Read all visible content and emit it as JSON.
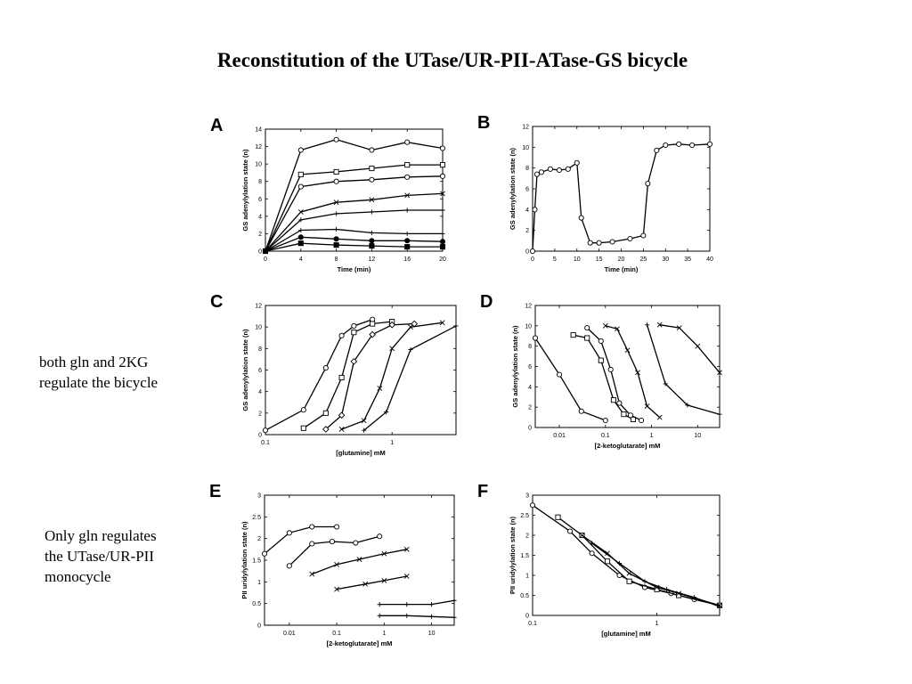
{
  "title": "Reconstitution of the UTase/UR-PII-ATase-GS bicycle",
  "notes": {
    "bicycle": [
      "both gln and 2KG",
      "regulate the bicycle"
    ],
    "monocycle": [
      "Only gln regulates",
      "the UTase/UR-PII",
      "monocycle"
    ]
  },
  "chart_data": [
    {
      "panel": "A",
      "type": "line",
      "xscale": "linear",
      "xlabel": "Time (min)",
      "ylabel": "GS adenylylation state (n)",
      "xlim": [
        0,
        20
      ],
      "ylim": [
        0,
        14
      ],
      "xticks": [
        0,
        4,
        8,
        12,
        16,
        20
      ],
      "yticks": [
        0,
        2,
        4,
        6,
        8,
        10,
        12,
        14
      ],
      "series": [
        {
          "marker": "circle",
          "x": [
            0,
            4,
            8,
            12,
            16,
            20
          ],
          "y": [
            0,
            11.6,
            12.8,
            11.6,
            12.5,
            11.8
          ]
        },
        {
          "marker": "square",
          "x": [
            0,
            4,
            8,
            12,
            16,
            20
          ],
          "y": [
            0,
            8.8,
            9.1,
            9.5,
            9.9,
            9.9
          ]
        },
        {
          "marker": "circle",
          "x": [
            0,
            4,
            8,
            12,
            16,
            20
          ],
          "y": [
            0,
            7.4,
            8.0,
            8.2,
            8.5,
            8.6
          ]
        },
        {
          "marker": "x",
          "x": [
            0,
            4,
            8,
            12,
            16,
            20
          ],
          "y": [
            0,
            4.5,
            5.6,
            5.9,
            6.4,
            6.6
          ]
        },
        {
          "marker": "plus",
          "x": [
            0,
            4,
            8,
            12,
            16,
            20
          ],
          "y": [
            0,
            3.6,
            4.3,
            4.5,
            4.7,
            4.7
          ]
        },
        {
          "marker": "plus",
          "x": [
            0,
            4,
            8,
            12,
            16,
            20
          ],
          "y": [
            0,
            2.4,
            2.5,
            2.1,
            2.0,
            2.0
          ]
        },
        {
          "marker": "filled-circle",
          "x": [
            0,
            4,
            8,
            12,
            16,
            20
          ],
          "y": [
            0,
            1.6,
            1.4,
            1.2,
            1.2,
            1.1
          ]
        },
        {
          "marker": "filled-square",
          "x": [
            0,
            4,
            8,
            12,
            16,
            20
          ],
          "y": [
            0,
            0.9,
            0.7,
            0.6,
            0.5,
            0.5
          ]
        }
      ]
    },
    {
      "panel": "B",
      "type": "line",
      "xscale": "linear",
      "xlabel": "Time (min)",
      "ylabel": "GS adenylylation state (n)",
      "xlim": [
        0,
        40
      ],
      "ylim": [
        0,
        12
      ],
      "xticks": [
        0,
        5,
        10,
        15,
        20,
        25,
        30,
        35,
        40
      ],
      "yticks": [
        0,
        2,
        4,
        6,
        8,
        10,
        12
      ],
      "series": [
        {
          "marker": "circle",
          "x": [
            0,
            0.5,
            1,
            2,
            4,
            6,
            8,
            10,
            11,
            13,
            15,
            18,
            22,
            25,
            26,
            28,
            30,
            33,
            36,
            40
          ],
          "y": [
            0,
            4.0,
            7.4,
            7.6,
            7.9,
            7.8,
            7.9,
            8.5,
            3.2,
            0.8,
            0.8,
            0.9,
            1.2,
            1.5,
            6.5,
            9.7,
            10.2,
            10.3,
            10.2,
            10.3
          ]
        }
      ]
    },
    {
      "panel": "C",
      "type": "line",
      "xscale": "log",
      "xlabel": "[glutamine] mM",
      "ylabel": "GS adenylylation state (n)",
      "xlim": [
        0.1,
        3.2
      ],
      "ylim": [
        0,
        12
      ],
      "xticks": [
        0.1,
        1
      ],
      "yticks": [
        0,
        2,
        4,
        6,
        8,
        10,
        12
      ],
      "series": [
        {
          "marker": "circle",
          "x": [
            0.1,
            0.2,
            0.3,
            0.4,
            0.5,
            0.7
          ],
          "y": [
            0.4,
            2.3,
            6.2,
            9.2,
            10.1,
            10.7
          ]
        },
        {
          "marker": "square",
          "x": [
            0.2,
            0.3,
            0.4,
            0.5,
            0.7,
            1.0
          ],
          "y": [
            0.6,
            2.0,
            5.3,
            9.5,
            10.3,
            10.5
          ]
        },
        {
          "marker": "diamond",
          "x": [
            0.3,
            0.4,
            0.5,
            0.7,
            1.0,
            1.5
          ],
          "y": [
            0.5,
            1.8,
            6.8,
            9.3,
            10.2,
            10.3
          ]
        },
        {
          "marker": "x",
          "x": [
            0.4,
            0.6,
            0.8,
            1.0,
            1.4,
            2.5
          ],
          "y": [
            0.5,
            1.3,
            4.3,
            8.0,
            10.0,
            10.4
          ]
        },
        {
          "marker": "plus",
          "x": [
            0.6,
            0.9,
            1.4,
            3.2
          ],
          "y": [
            0.4,
            2.1,
            7.9,
            10.1
          ]
        }
      ]
    },
    {
      "panel": "D",
      "type": "line",
      "xscale": "log",
      "xlabel": "[2-ketoglutarate] mM",
      "ylabel": "GS adenylylation state (n)",
      "xlim": [
        0.003,
        30
      ],
      "ylim": [
        0,
        12
      ],
      "xticks": [
        0.01,
        0.1,
        1,
        10
      ],
      "yticks": [
        0,
        2,
        4,
        6,
        8,
        10,
        12
      ],
      "series": [
        {
          "marker": "circle",
          "x": [
            0.003,
            0.01,
            0.03,
            0.1
          ],
          "y": [
            8.8,
            5.2,
            1.6,
            0.7
          ]
        },
        {
          "marker": "square",
          "x": [
            0.02,
            0.04,
            0.08,
            0.15,
            0.25,
            0.4
          ],
          "y": [
            9.1,
            8.8,
            6.6,
            2.7,
            1.3,
            0.8
          ]
        },
        {
          "marker": "circle",
          "x": [
            0.04,
            0.08,
            0.13,
            0.2,
            0.35,
            0.6
          ],
          "y": [
            9.8,
            8.5,
            5.7,
            2.4,
            1.2,
            0.7
          ]
        },
        {
          "marker": "x",
          "x": [
            0.1,
            0.18,
            0.3,
            0.5,
            0.8,
            1.5
          ],
          "y": [
            10.0,
            9.7,
            7.6,
            5.4,
            2.1,
            1.0
          ]
        },
        {
          "marker": "plus",
          "x": [
            0.8,
            2,
            6,
            30
          ],
          "y": [
            10.1,
            4.3,
            2.2,
            1.3
          ]
        },
        {
          "marker": "x",
          "x": [
            1.5,
            4,
            10,
            30
          ],
          "y": [
            10.1,
            9.8,
            8.0,
            5.4
          ]
        }
      ]
    },
    {
      "panel": "E",
      "type": "line",
      "xscale": "log",
      "xlabel": "[2-ketoglutarate] mM",
      "ylabel": "PII uridylylation state (n)",
      "xlim": [
        0.003,
        30
      ],
      "ylim": [
        0,
        3
      ],
      "xticks": [
        0.01,
        0.1,
        1,
        10
      ],
      "yticks": [
        0,
        0.5,
        1,
        1.5,
        2,
        2.5,
        3
      ],
      "series": [
        {
          "marker": "circle",
          "x": [
            0.003,
            0.01,
            0.03,
            0.1
          ],
          "y": [
            1.65,
            2.13,
            2.27,
            2.27
          ]
        },
        {
          "marker": "circle",
          "x": [
            0.01,
            0.03,
            0.08,
            0.25,
            0.8
          ],
          "y": [
            1.37,
            1.88,
            1.93,
            1.9,
            2.05
          ]
        },
        {
          "marker": "x",
          "x": [
            0.03,
            0.1,
            0.3,
            1,
            3
          ],
          "y": [
            1.18,
            1.4,
            1.52,
            1.65,
            1.75
          ]
        },
        {
          "marker": "x",
          "x": [
            0.1,
            0.4,
            1,
            3
          ],
          "y": [
            0.83,
            0.95,
            1.03,
            1.13
          ]
        },
        {
          "marker": "plus",
          "x": [
            0.8,
            3,
            10,
            30
          ],
          "y": [
            0.48,
            0.48,
            0.48,
            0.57
          ]
        },
        {
          "marker": "plus",
          "x": [
            0.8,
            3,
            10,
            30
          ],
          "y": [
            0.22,
            0.22,
            0.2,
            0.18
          ]
        }
      ]
    },
    {
      "panel": "F",
      "type": "line",
      "xscale": "log",
      "xlabel": "[glutamine] mM",
      "ylabel": "PII uridylylation state (n)",
      "xlim": [
        0.1,
        3.2
      ],
      "ylim": [
        0,
        3
      ],
      "xticks": [
        0.1,
        1
      ],
      "yticks": [
        0,
        0.5,
        1,
        1.5,
        2,
        2.5,
        3
      ],
      "series": [
        {
          "marker": "circle",
          "x": [
            0.1,
            0.2,
            0.3,
            0.5,
            0.8,
            1.3,
            2,
            3.2
          ],
          "y": [
            2.75,
            2.1,
            1.55,
            1.0,
            0.7,
            0.55,
            0.4,
            0.25
          ]
        },
        {
          "marker": "square",
          "x": [
            0.16,
            0.25,
            0.4,
            0.6,
            1.0,
            1.5,
            3.2
          ],
          "y": [
            2.45,
            2.0,
            1.35,
            0.85,
            0.65,
            0.5,
            0.25
          ]
        },
        {
          "marker": "x",
          "x": [
            0.25,
            0.4,
            0.6,
            1.0,
            1.5,
            3.2
          ],
          "y": [
            2.0,
            1.55,
            1.05,
            0.7,
            0.55,
            0.25
          ]
        },
        {
          "marker": "plus",
          "x": [
            0.3,
            0.5,
            0.8,
            1.2,
            2,
            3.2
          ],
          "y": [
            1.8,
            1.3,
            0.85,
            0.65,
            0.45,
            0.22
          ]
        }
      ]
    }
  ]
}
